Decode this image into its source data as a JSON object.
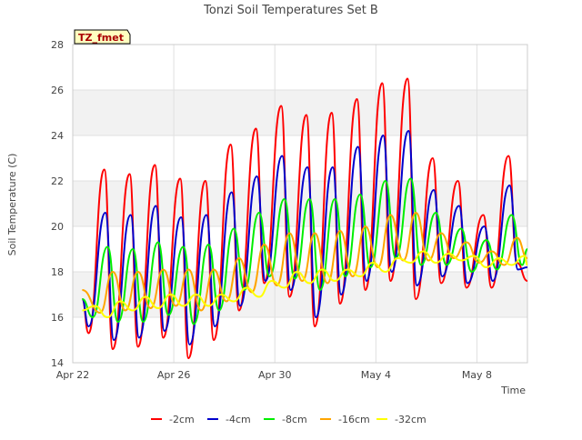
{
  "chart_data": {
    "type": "line",
    "title": "Tonzi Soil Temperatures Set B",
    "xlabel": "Time",
    "ylabel": "Soil Temperature (C)",
    "annotation": "TZ_fmet",
    "xlim": [
      "2023-04-22",
      "2023-05-10"
    ],
    "ylim": [
      14,
      28
    ],
    "y_ticks": [
      14,
      16,
      18,
      20,
      22,
      24,
      26,
      28
    ],
    "x_ticks": [
      {
        "date": "2023-04-22",
        "label": "Apr 22"
      },
      {
        "date": "2023-04-26",
        "label": "Apr 26"
      },
      {
        "date": "2023-04-30",
        "label": "Apr 30"
      },
      {
        "date": "2023-05-04",
        "label": "May 4"
      },
      {
        "date": "2023-05-08",
        "label": "May 8"
      }
    ],
    "grid": true,
    "legend_position": "bottom",
    "daily_extremes_note": "Approximate daily minima and maxima read from the plot; series oscillate diurnally between them.",
    "series": [
      {
        "name": "-2cm",
        "color": "#ff0000",
        "x": [
          "2023-04-22 09:00",
          "2023-04-22 15:00",
          "2023-04-23 06:00",
          "2023-04-23 14:00",
          "2023-04-24 06:00",
          "2023-04-24 14:00",
          "2023-04-25 06:00",
          "2023-04-25 14:00",
          "2023-04-26 06:00",
          "2023-04-26 14:00",
          "2023-04-27 06:00",
          "2023-04-27 14:00",
          "2023-04-28 06:00",
          "2023-04-28 14:00",
          "2023-04-29 06:00",
          "2023-04-29 14:00",
          "2023-04-30 06:00",
          "2023-04-30 14:00",
          "2023-05-01 06:00",
          "2023-05-01 14:00",
          "2023-05-02 06:00",
          "2023-05-02 14:00",
          "2023-05-03 06:00",
          "2023-05-03 14:00",
          "2023-05-04 06:00",
          "2023-05-04 14:00",
          "2023-05-05 06:00",
          "2023-05-05 14:00",
          "2023-05-06 06:00",
          "2023-05-06 14:00",
          "2023-05-07 06:00",
          "2023-05-07 14:00",
          "2023-05-08 06:00",
          "2023-05-08 14:00",
          "2023-05-09 06:00",
          "2023-05-09 14:00",
          "2023-05-10 00:00"
        ],
        "values": [
          16.8,
          15.3,
          22.5,
          14.6,
          22.3,
          14.7,
          22.7,
          15.1,
          22.1,
          14.2,
          22.0,
          15.0,
          23.6,
          16.3,
          24.3,
          17.5,
          25.3,
          16.9,
          24.9,
          15.6,
          25.0,
          16.6,
          25.6,
          17.2,
          26.3,
          17.6,
          26.5,
          16.8,
          23.0,
          17.5,
          22.0,
          17.3,
          20.5,
          17.3,
          23.1,
          18.4,
          17.6
        ]
      },
      {
        "name": "-4cm",
        "color": "#0000cc",
        "x": [
          "2023-04-22 09:00",
          "2023-04-22 15:00",
          "2023-04-23 07:00",
          "2023-04-23 15:00",
          "2023-04-24 07:00",
          "2023-04-24 15:00",
          "2023-04-25 07:00",
          "2023-04-25 15:00",
          "2023-04-26 07:00",
          "2023-04-26 15:00",
          "2023-04-27 07:00",
          "2023-04-27 15:00",
          "2023-04-28 07:00",
          "2023-04-28 15:00",
          "2023-04-29 07:00",
          "2023-04-29 15:00",
          "2023-04-30 07:00",
          "2023-04-30 15:00",
          "2023-05-01 07:00",
          "2023-05-01 15:00",
          "2023-05-02 07:00",
          "2023-05-02 15:00",
          "2023-05-03 07:00",
          "2023-05-03 15:00",
          "2023-05-04 07:00",
          "2023-05-04 15:00",
          "2023-05-05 07:00",
          "2023-05-05 15:00",
          "2023-05-06 07:00",
          "2023-05-06 15:00",
          "2023-05-07 07:00",
          "2023-05-07 15:00",
          "2023-05-08 07:00",
          "2023-05-08 15:00",
          "2023-05-09 07:00",
          "2023-05-09 15:00",
          "2023-05-10 00:00"
        ],
        "values": [
          16.8,
          15.6,
          20.6,
          15.0,
          20.5,
          15.1,
          20.9,
          15.4,
          20.4,
          14.8,
          20.5,
          15.6,
          21.5,
          16.5,
          22.2,
          17.6,
          23.1,
          17.2,
          22.6,
          16.0,
          22.6,
          17.0,
          23.5,
          17.6,
          24.0,
          18.0,
          24.2,
          17.4,
          21.6,
          17.8,
          20.9,
          17.5,
          20.0,
          17.6,
          21.8,
          18.1,
          18.2
        ]
      },
      {
        "name": "-8cm",
        "color": "#00ee00",
        "x": [
          "2023-04-22 09:00",
          "2023-04-22 19:00",
          "2023-04-23 09:00",
          "2023-04-23 19:00",
          "2023-04-24 09:00",
          "2023-04-24 19:00",
          "2023-04-25 09:00",
          "2023-04-25 19:00",
          "2023-04-26 09:00",
          "2023-04-26 19:00",
          "2023-04-27 09:00",
          "2023-04-27 19:00",
          "2023-04-28 09:00",
          "2023-04-28 19:00",
          "2023-04-29 09:00",
          "2023-04-29 19:00",
          "2023-04-30 09:00",
          "2023-04-30 19:00",
          "2023-05-01 09:00",
          "2023-05-01 19:00",
          "2023-05-02 09:00",
          "2023-05-02 19:00",
          "2023-05-03 09:00",
          "2023-05-03 19:00",
          "2023-05-04 09:00",
          "2023-05-04 19:00",
          "2023-05-05 09:00",
          "2023-05-05 19:00",
          "2023-05-06 09:00",
          "2023-05-06 19:00",
          "2023-05-07 09:00",
          "2023-05-07 19:00",
          "2023-05-08 09:00",
          "2023-05-08 19:00",
          "2023-05-09 09:00",
          "2023-05-09 19:00",
          "2023-05-10 00:00"
        ],
        "values": [
          16.8,
          16.0,
          19.1,
          15.8,
          19.0,
          15.8,
          19.3,
          16.1,
          19.1,
          15.7,
          19.2,
          16.3,
          19.9,
          17.2,
          20.6,
          17.8,
          21.2,
          17.7,
          21.2,
          17.2,
          21.2,
          17.8,
          21.4,
          18.2,
          22.0,
          18.6,
          22.1,
          18.3,
          20.6,
          18.3,
          19.9,
          18.0,
          19.4,
          18.1,
          20.5,
          18.3,
          19.0
        ]
      },
      {
        "name": "-16cm",
        "color": "#ffa500",
        "x": [
          "2023-04-22 09:00",
          "2023-04-23 02:00",
          "2023-04-23 14:00",
          "2023-04-24 02:00",
          "2023-04-24 14:00",
          "2023-04-25 02:00",
          "2023-04-25 14:00",
          "2023-04-26 02:00",
          "2023-04-26 14:00",
          "2023-04-27 02:00",
          "2023-04-27 14:00",
          "2023-04-28 02:00",
          "2023-04-28 14:00",
          "2023-04-29 02:00",
          "2023-04-29 14:00",
          "2023-04-30 02:00",
          "2023-04-30 14:00",
          "2023-05-01 02:00",
          "2023-05-01 14:00",
          "2023-05-02 02:00",
          "2023-05-02 14:00",
          "2023-05-03 02:00",
          "2023-05-03 14:00",
          "2023-05-04 02:00",
          "2023-05-04 14:00",
          "2023-05-05 02:00",
          "2023-05-05 14:00",
          "2023-05-06 02:00",
          "2023-05-06 14:00",
          "2023-05-07 02:00",
          "2023-05-07 14:00",
          "2023-05-08 02:00",
          "2023-05-08 14:00",
          "2023-05-09 02:00",
          "2023-05-09 14:00",
          "2023-05-10 00:00"
        ],
        "values": [
          17.2,
          16.2,
          18.0,
          16.3,
          18.0,
          16.4,
          18.1,
          16.5,
          18.1,
          16.3,
          18.1,
          16.7,
          18.6,
          17.1,
          19.2,
          17.4,
          19.7,
          17.6,
          19.7,
          17.5,
          19.8,
          17.8,
          20.0,
          18.2,
          20.5,
          18.5,
          20.6,
          18.5,
          19.7,
          18.6,
          19.3,
          18.4,
          18.9,
          18.3,
          19.5,
          18.6
        ]
      },
      {
        "name": "-32cm",
        "color": "#ffff00",
        "x": [
          "2023-04-22 09:00",
          "2023-04-22 21:00",
          "2023-04-23 09:00",
          "2023-04-23 21:00",
          "2023-04-24 09:00",
          "2023-04-24 21:00",
          "2023-04-25 09:00",
          "2023-04-25 21:00",
          "2023-04-26 09:00",
          "2023-04-26 21:00",
          "2023-04-27 09:00",
          "2023-04-27 21:00",
          "2023-04-28 09:00",
          "2023-04-28 21:00",
          "2023-04-29 09:00",
          "2023-04-29 21:00",
          "2023-04-30 09:00",
          "2023-04-30 21:00",
          "2023-05-01 09:00",
          "2023-05-01 21:00",
          "2023-05-02 09:00",
          "2023-05-02 21:00",
          "2023-05-03 09:00",
          "2023-05-03 21:00",
          "2023-05-04 09:00",
          "2023-05-04 21:00",
          "2023-05-05 09:00",
          "2023-05-05 21:00",
          "2023-05-06 09:00",
          "2023-05-06 21:00",
          "2023-05-07 09:00",
          "2023-05-07 21:00",
          "2023-05-08 09:00",
          "2023-05-08 21:00",
          "2023-05-09 09:00",
          "2023-05-09 21:00",
          "2023-05-10 00:00"
        ],
        "values": [
          16.3,
          16.5,
          16.0,
          16.7,
          16.3,
          16.9,
          16.4,
          17.0,
          16.5,
          17.0,
          16.5,
          17.0,
          16.7,
          17.3,
          16.9,
          17.6,
          17.3,
          18.0,
          17.5,
          18.1,
          17.6,
          18.1,
          17.8,
          18.4,
          18.0,
          18.6,
          18.4,
          18.9,
          18.4,
          18.8,
          18.5,
          18.7,
          18.2,
          18.6,
          18.3,
          18.7,
          18.3
        ]
      }
    ]
  }
}
